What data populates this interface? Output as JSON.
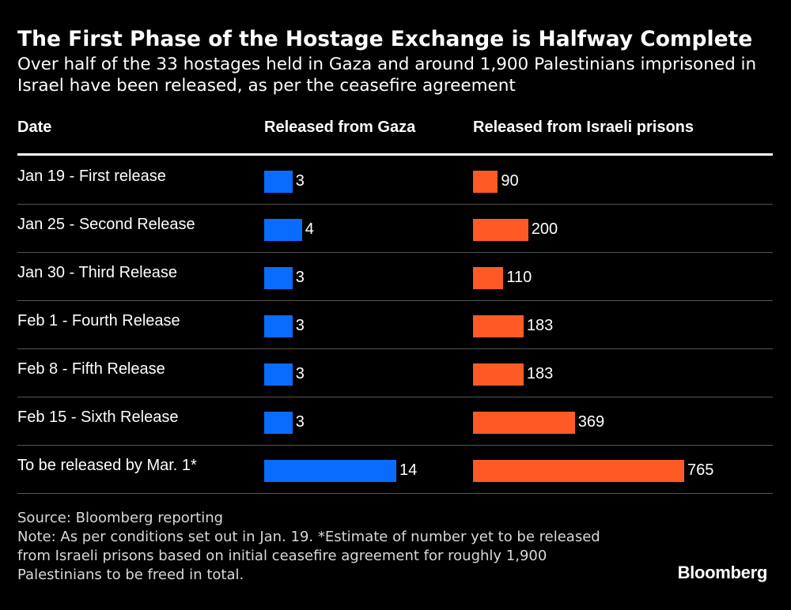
{
  "title": "The First Phase of the Hostage Exchange is Halfway Complete",
  "subtitle": "Over half of the 33 hostages held in Gaza and around 1,900 Palestinians imprisoned in Israel have been released, as per the ceasefire agreement",
  "columns": {
    "date": "Date",
    "gaza": "Released from Gaza",
    "israel": "Released from Israeli prisons"
  },
  "colors": {
    "gaza": "#0a6cff",
    "israel": "#ff5a26",
    "background": "#000000"
  },
  "chart_data": {
    "type": "table",
    "categories": [
      "Jan 19 - First release",
      "Jan 25 - Second Release",
      "Jan 30 - Third Release",
      "Feb 1 - Fourth Release",
      "Feb 8 - Fifth Release",
      "Feb 15 - Sixth Release",
      "To be released by Mar. 1*"
    ],
    "series": [
      {
        "name": "Released from Gaza",
        "values": [
          3,
          4,
          3,
          3,
          3,
          3,
          14
        ]
      },
      {
        "name": "Released from Israeli prisons",
        "values": [
          90,
          200,
          110,
          183,
          183,
          369,
          765
        ]
      }
    ]
  },
  "footer": {
    "source": "Source: Bloomberg reporting",
    "note": "Note: As per conditions set out in Jan. 19. *Estimate of number yet to be released from Israeli prisons based on initial ceasefire agreement for roughly 1,900 Palestinians to be freed in total.",
    "logo": "Bloomberg"
  }
}
